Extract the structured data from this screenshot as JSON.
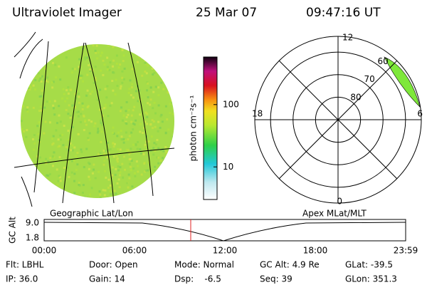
{
  "header": {
    "title": "Ultraviolet Imager",
    "date": "25 Mar 07",
    "time": "09:47:16 UT"
  },
  "colorbar": {
    "label": "photon cm⁻²s⁻¹",
    "log": true,
    "lim": [
      3,
      580
    ],
    "ticks": [
      10,
      100
    ]
  },
  "polar": {
    "mlt_labels": [
      "12",
      "18",
      "6",
      "0"
    ],
    "lat_rings": [
      80,
      70,
      60
    ],
    "lat_min": 53
  },
  "strip": {
    "left_title": "Geographic Lat/Lon",
    "right_title": "Apex MLat/MLT",
    "ylabel": "GC Alt",
    "yticks": [
      "9.0",
      "1.8"
    ],
    "xticks": [
      "00:00",
      "06:00",
      "12:00",
      "18:00",
      "23:59"
    ]
  },
  "footer": {
    "rows": [
      [
        "Flt: LBHL",
        "Door: Open",
        "Mode: Normal",
        "GC Alt: 4.9 Re",
        "GLat: -39.5"
      ],
      [
        "IP: 36.0",
        "Gain: 14",
        "Dsp:    -6.5",
        "Seq: 39",
        "GLon: 351.3"
      ]
    ]
  }
}
